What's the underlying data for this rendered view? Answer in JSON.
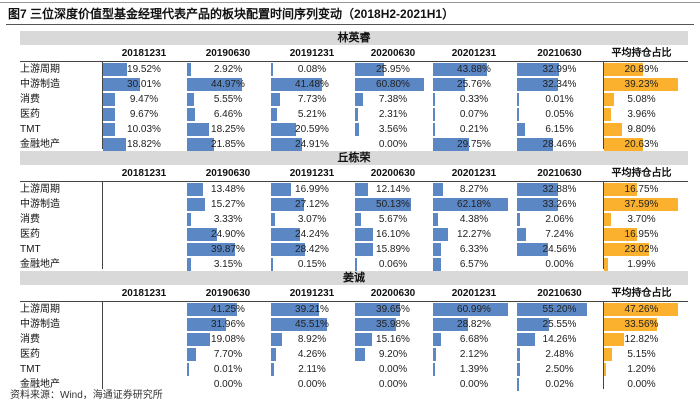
{
  "title": "图7  三位深度价值型基金经理代表产品的板块配置时间序列变动（2018H2-2021H1）",
  "source": "资料来源：Wind，海通证券研究所",
  "colors": {
    "bar": "#5b87c5",
    "avg_bar": "#fbb12d",
    "section_header": "#d9d9d9"
  },
  "chart_data": {
    "type": "table",
    "columns": [
      "20181231",
      "20190630",
      "20191231",
      "20200630",
      "20201231",
      "20210630",
      "平均持仓占比"
    ],
    "rows": [
      "上游周期",
      "中游制造",
      "消费",
      "医药",
      "TMT",
      "金融地产"
    ],
    "sections": [
      {
        "name": "林英睿",
        "values": [
          [
            "19.52%",
            "2.92%",
            "0.08%",
            "25.95%",
            "43.88%",
            "32.99%",
            "20.89%"
          ],
          [
            "30.01%",
            "44.97%",
            "41.48%",
            "60.80%",
            "25.76%",
            "32.34%",
            "39.23%"
          ],
          [
            "9.47%",
            "5.55%",
            "7.73%",
            "7.38%",
            "0.33%",
            "0.01%",
            "5.08%"
          ],
          [
            "9.67%",
            "6.46%",
            "5.21%",
            "2.31%",
            "0.07%",
            "0.05%",
            "3.96%"
          ],
          [
            "10.03%",
            "18.25%",
            "20.59%",
            "3.56%",
            "0.21%",
            "6.15%",
            "9.80%"
          ],
          [
            "18.82%",
            "21.85%",
            "24.91%",
            "0.00%",
            "29.75%",
            "28.46%",
            "20.63%"
          ]
        ]
      },
      {
        "name": "丘栋荣",
        "values": [
          [
            "",
            "13.48%",
            "16.99%",
            "12.14%",
            "8.27%",
            "32.88%",
            "16.75%"
          ],
          [
            "",
            "15.27%",
            "27.12%",
            "50.13%",
            "62.18%",
            "33.26%",
            "37.59%"
          ],
          [
            "",
            "3.33%",
            "3.07%",
            "5.67%",
            "4.38%",
            "2.06%",
            "3.70%"
          ],
          [
            "",
            "24.90%",
            "24.24%",
            "16.10%",
            "12.27%",
            "7.24%",
            "16.95%"
          ],
          [
            "",
            "39.87%",
            "28.42%",
            "15.89%",
            "6.33%",
            "24.56%",
            "23.02%"
          ],
          [
            "",
            "3.15%",
            "0.15%",
            "0.06%",
            "6.57%",
            "0.00%",
            "1.99%"
          ]
        ]
      },
      {
        "name": "姜诚",
        "values": [
          [
            "",
            "41.25%",
            "39.21%",
            "39.65%",
            "60.99%",
            "55.20%",
            "47.26%"
          ],
          [
            "",
            "31.96%",
            "45.51%",
            "35.98%",
            "28.82%",
            "25.55%",
            "33.56%"
          ],
          [
            "",
            "19.08%",
            "8.92%",
            "15.16%",
            "6.68%",
            "14.26%",
            "12.82%"
          ],
          [
            "",
            "7.70%",
            "4.26%",
            "9.20%",
            "2.12%",
            "2.48%",
            "5.15%"
          ],
          [
            "",
            "0.01%",
            "2.11%",
            "0.00%",
            "1.39%",
            "2.50%",
            "1.20%"
          ],
          [
            "",
            "0.00%",
            "0.00%",
            "0.00%",
            "0.00%",
            "0.02%",
            "0.00%"
          ]
        ]
      }
    ]
  }
}
